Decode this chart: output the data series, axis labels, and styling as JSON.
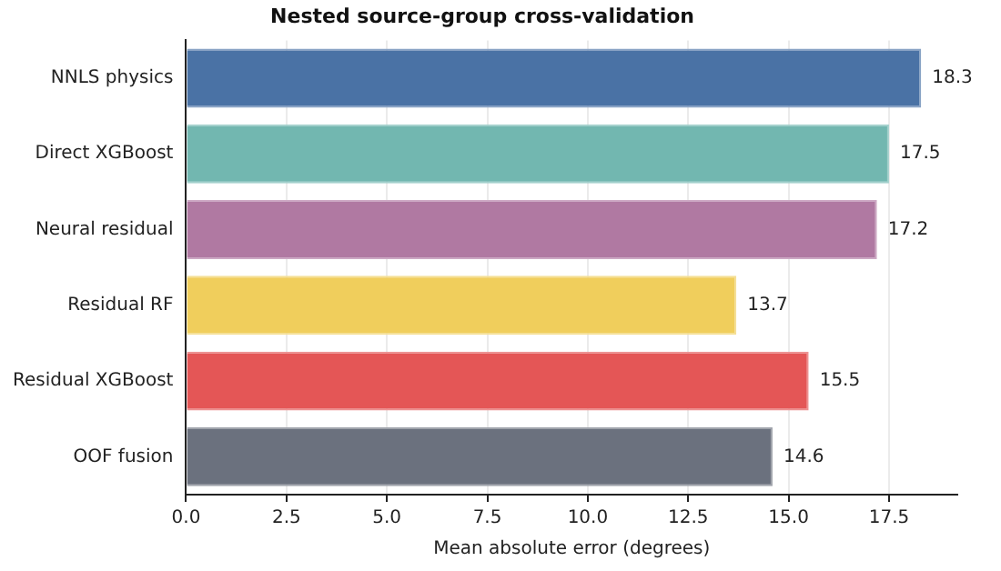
{
  "chart_data": {
    "type": "bar",
    "orientation": "horizontal",
    "title": "Nested source-group cross-validation",
    "xlabel": "Mean absolute error (degrees)",
    "categories": [
      "NNLS physics",
      "Direct XGBoost",
      "Neural residual",
      "Residual RF",
      "Residual XGBoost",
      "OOF fusion"
    ],
    "values": [
      18.3,
      17.5,
      17.2,
      13.7,
      15.5,
      14.6
    ],
    "colors": [
      "#4a72a5",
      "#72b7b0",
      "#b079a2",
      "#f0ce5c",
      "#e45656",
      "#6b717e"
    ],
    "xlim": [
      0,
      19.2
    ],
    "xticks": [
      {
        "value": 0,
        "label": "0.0"
      },
      {
        "value": 2.5,
        "label": "2.5"
      },
      {
        "value": 5,
        "label": "5.0"
      },
      {
        "value": 7.5,
        "label": "7.5"
      },
      {
        "value": 10,
        "label": "10.0"
      },
      {
        "value": 12.5,
        "label": "12.5"
      },
      {
        "value": 15,
        "label": "15.0"
      },
      {
        "value": 17.5,
        "label": "17.5"
      }
    ],
    "grid": "x",
    "data_labels": true
  }
}
